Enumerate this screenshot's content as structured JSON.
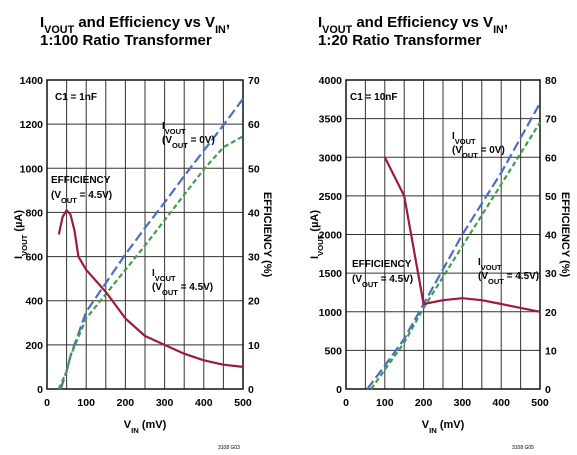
{
  "page": {
    "fig_codes": [
      "3108 G03",
      "3108 G05"
    ]
  },
  "chart_data": [
    {
      "type": "line",
      "title_line1_parts": [
        "I",
        "VOUT",
        " and Efficiency vs V",
        "IN",
        ","
      ],
      "title_line2": "1:100 Ratio Transformer",
      "xlabel_parts": [
        "V",
        "IN",
        " (mV)"
      ],
      "ylabel_left_parts": [
        "I",
        "VOUT",
        " (µA)"
      ],
      "ylabel_right": "EFFICIENCY (%)",
      "xlim": [
        0,
        500
      ],
      "ylim_left": [
        0,
        1400
      ],
      "ylim_right": [
        0,
        70
      ],
      "x_ticks": [
        "0",
        "100",
        "200",
        "300",
        "400",
        "500"
      ],
      "y_left_ticks": [
        "0",
        "200",
        "400",
        "600",
        "800",
        "1000",
        "1200",
        "1400"
      ],
      "y_right_ticks": [
        "0",
        "10",
        "20",
        "30",
        "40",
        "50",
        "60",
        "70"
      ],
      "grid": true,
      "annotations": {
        "cap": "C1 = 1nF",
        "iv0_l1": [
          "I",
          "VOUT"
        ],
        "iv0_l2": [
          "(V",
          "OUT",
          " = 0V)"
        ],
        "eff_l1": "EFFICIENCY",
        "eff_l2": [
          "(V",
          "OUT",
          " = 4.5V)"
        ],
        "iv45_l1": [
          "I",
          "VOUT"
        ],
        "iv45_l2": [
          "(V",
          "OUT",
          " = 4.5V)"
        ]
      },
      "series": [
        {
          "key": "ivout_0v",
          "axis": "left",
          "style": "long-dash",
          "color": "#4a6fc4",
          "points": [
            [
              35,
              0
            ],
            [
              50,
              80
            ],
            [
              60,
              150
            ],
            [
              100,
              350
            ],
            [
              150,
              480
            ],
            [
              200,
              610
            ],
            [
              250,
              730
            ],
            [
              300,
              845
            ],
            [
              350,
              965
            ],
            [
              400,
              1080
            ],
            [
              450,
              1195
            ],
            [
              500,
              1315
            ]
          ]
        },
        {
          "key": "ivout_45v",
          "axis": "left",
          "style": "short-dash",
          "color": "#3e9e49",
          "points": [
            [
              30,
              0
            ],
            [
              50,
              80
            ],
            [
              60,
              150
            ],
            [
              100,
              320
            ],
            [
              150,
              430
            ],
            [
              200,
              540
            ],
            [
              250,
              650
            ],
            [
              300,
              765
            ],
            [
              350,
              880
            ],
            [
              400,
              995
            ],
            [
              450,
              1095
            ],
            [
              500,
              1145
            ]
          ]
        },
        {
          "key": "efficiency",
          "axis": "right",
          "style": "solid",
          "color": "#9c1b3c",
          "points": [
            [
              30,
              35
            ],
            [
              35,
              37
            ],
            [
              40,
              39
            ],
            [
              50,
              40.5
            ],
            [
              60,
              39.5
            ],
            [
              70,
              36
            ],
            [
              80,
              30
            ],
            [
              100,
              27
            ],
            [
              130,
              24
            ],
            [
              150,
              22
            ],
            [
              200,
              16
            ],
            [
              250,
              12
            ],
            [
              300,
              10
            ],
            [
              350,
              8
            ],
            [
              400,
              6.5
            ],
            [
              450,
              5.5
            ],
            [
              500,
              5
            ]
          ]
        }
      ]
    },
    {
      "type": "line",
      "title_line1_parts": [
        "I",
        "VOUT",
        " and Efficiency vs V",
        "IN",
        ","
      ],
      "title_line2": "1:20 Ratio Transformer",
      "xlabel_parts": [
        "V",
        "IN",
        " (mV)"
      ],
      "ylabel_left_parts": [
        "I",
        "VOUT",
        " (µA)"
      ],
      "ylabel_right": "EFFICIENCY (%)",
      "xlim": [
        0,
        500
      ],
      "ylim_left": [
        0,
        4000
      ],
      "ylim_right": [
        0,
        80
      ],
      "x_ticks": [
        "0",
        "100",
        "200",
        "300",
        "400",
        "500"
      ],
      "y_left_ticks": [
        "0",
        "500",
        "1000",
        "1500",
        "2000",
        "2500",
        "3000",
        "3500",
        "4000"
      ],
      "y_right_ticks": [
        "0",
        "10",
        "20",
        "30",
        "40",
        "50",
        "60",
        "70",
        "80"
      ],
      "grid": true,
      "annotations": {
        "cap": "C1 = 10nF",
        "iv0_l1": [
          "I",
          "VOUT"
        ],
        "iv0_l2": [
          "(V",
          "OUT",
          " = 0V)"
        ],
        "eff_l1": "EFFICIENCY",
        "eff_l2": [
          "(V",
          "OUT",
          " = 4.5V)"
        ],
        "iv45_l1": [
          "I",
          "VOUT"
        ],
        "iv45_l2": [
          "(V",
          "OUT",
          " = 4.5V)"
        ]
      },
      "series": [
        {
          "key": "ivout_0v",
          "axis": "left",
          "style": "long-dash",
          "color": "#4a6fc4",
          "points": [
            [
              55,
              0
            ],
            [
              100,
              300
            ],
            [
              150,
              650
            ],
            [
              200,
              1100
            ],
            [
              250,
              1550
            ],
            [
              300,
              2000
            ],
            [
              350,
              2400
            ],
            [
              400,
              2800
            ],
            [
              450,
              3250
            ],
            [
              500,
              3700
            ]
          ]
        },
        {
          "key": "ivout_45v",
          "axis": "left",
          "style": "short-dash",
          "color": "#3e9e49",
          "points": [
            [
              65,
              0
            ],
            [
              100,
              250
            ],
            [
              150,
              600
            ],
            [
              200,
              1050
            ],
            [
              250,
              1450
            ],
            [
              300,
              1850
            ],
            [
              350,
              2250
            ],
            [
              400,
              2650
            ],
            [
              450,
              3050
            ],
            [
              500,
              3450
            ]
          ]
        },
        {
          "key": "efficiency",
          "axis": "right",
          "style": "solid",
          "color": "#9c1b3c",
          "points": [
            [
              100,
              60
            ],
            [
              125,
              55
            ],
            [
              150,
              50
            ],
            [
              200,
              22
            ],
            [
              250,
              23
            ],
            [
              300,
              23.5
            ],
            [
              350,
              23
            ],
            [
              400,
              22
            ],
            [
              450,
              21
            ],
            [
              500,
              20
            ]
          ]
        }
      ]
    }
  ]
}
